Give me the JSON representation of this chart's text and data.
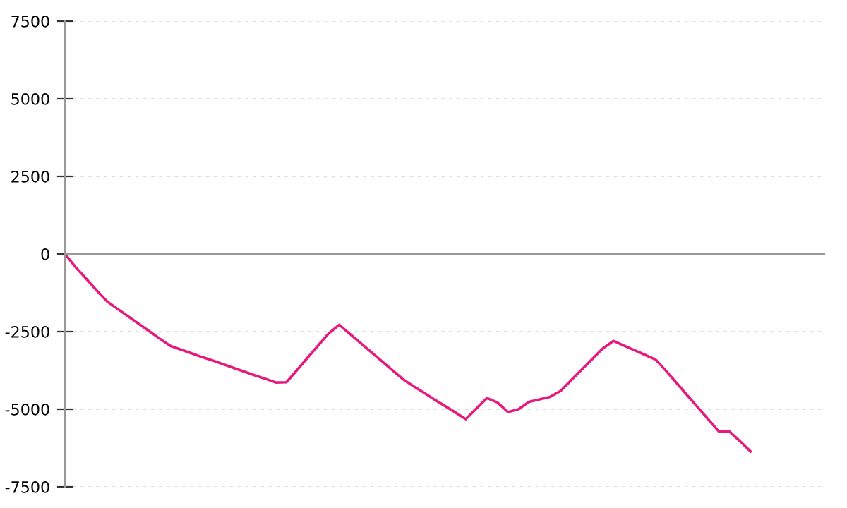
{
  "chart_data": {
    "type": "line",
    "categories": [
      null,
      null,
      null,
      null,
      null,
      null,
      null,
      null,
      null,
      null,
      null,
      null,
      null,
      null,
      null,
      null,
      null,
      null,
      null,
      null,
      null,
      null,
      null,
      null,
      null,
      null,
      null,
      null,
      null,
      null,
      null,
      null,
      null,
      null,
      null,
      null,
      null,
      null,
      null,
      null,
      null,
      null,
      null,
      null,
      null,
      null,
      null,
      null,
      null,
      null,
      null,
      null,
      null,
      null,
      null,
      null,
      null,
      null,
      null,
      null,
      null,
      null,
      null,
      null,
      null,
      null,
      null,
      null,
      null,
      null,
      null,
      null,
      null
    ],
    "series": [
      {
        "color": "#e8197d",
        "values": [
          0,
          -420,
          -790,
          -1170,
          -1530,
          -1770,
          -2010,
          -2250,
          -2490,
          -2730,
          -2960,
          -3080,
          -3200,
          -3320,
          -3430,
          -3550,
          -3670,
          -3790,
          -3910,
          -4020,
          -4140,
          -4130,
          -3740,
          -3340,
          -2950,
          -2560,
          -2280,
          -2570,
          -2860,
          -3150,
          -3440,
          -3730,
          -4020,
          -4250,
          -4460,
          -4680,
          -4890,
          -5100,
          -5320,
          -4980,
          -4640,
          -4780,
          -5090,
          -5000,
          -4760,
          -4680,
          -4600,
          -4410,
          -4060,
          -3720,
          -3380,
          -3040,
          -2800,
          -2950,
          -3100,
          -3250,
          -3400,
          -3770,
          -4160,
          -4550,
          -4940,
          -5330,
          -5720,
          -5720,
          -6030,
          -6360,
          null,
          null,
          null,
          null,
          null,
          null,
          null
        ]
      }
    ],
    "ylim": [
      -7500,
      7500
    ],
    "yticks": [
      -7500,
      -5000,
      -2500,
      0,
      2500,
      5000,
      7500
    ],
    "grid": "y",
    "tick_labels": "y",
    "marker": "none",
    "line_style": "solid"
  }
}
